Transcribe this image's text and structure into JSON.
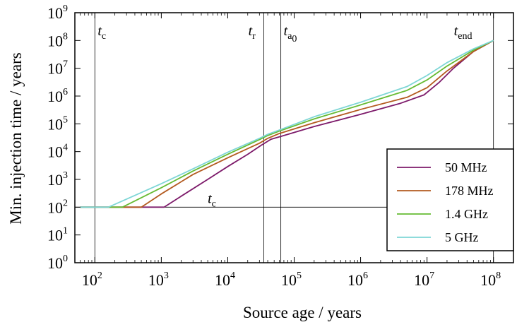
{
  "chart_data": {
    "type": "line",
    "xscale": "log",
    "yscale": "log",
    "xlabel": "Source age / years",
    "ylabel": "Min. injection time / years",
    "xlim": [
      50,
      200000000
    ],
    "ylim": [
      1,
      1000000000
    ],
    "x_ticks": [
      {
        "base": "10",
        "exp": "2",
        "value": 100
      },
      {
        "base": "10",
        "exp": "3",
        "value": 1000
      },
      {
        "base": "10",
        "exp": "4",
        "value": 10000
      },
      {
        "base": "10",
        "exp": "5",
        "value": 100000
      },
      {
        "base": "10",
        "exp": "6",
        "value": 1000000
      },
      {
        "base": "10",
        "exp": "7",
        "value": 10000000
      },
      {
        "base": "10",
        "exp": "8",
        "value": 100000000
      }
    ],
    "y_ticks": [
      {
        "base": "10",
        "exp": "0",
        "value": 1
      },
      {
        "base": "10",
        "exp": "1",
        "value": 10
      },
      {
        "base": "10",
        "exp": "2",
        "value": 100
      },
      {
        "base": "10",
        "exp": "3",
        "value": 1000
      },
      {
        "base": "10",
        "exp": "4",
        "value": 10000
      },
      {
        "base": "10",
        "exp": "5",
        "value": 100000
      },
      {
        "base": "10",
        "exp": "6",
        "value": 1000000
      },
      {
        "base": "10",
        "exp": "7",
        "value": 10000000
      },
      {
        "base": "10",
        "exp": "8",
        "value": 100000000
      },
      {
        "base": "10",
        "exp": "9",
        "value": 1000000000
      }
    ],
    "reference_lines": [
      {
        "orientation": "vertical",
        "x": 100,
        "label_main": "t",
        "label_sub": "c"
      },
      {
        "orientation": "vertical",
        "x": 35000,
        "label_main": "t",
        "label_sub": "r"
      },
      {
        "orientation": "vertical",
        "x": 63000,
        "label_main": "t",
        "label_sub": "a",
        "label_subsub": "0"
      },
      {
        "orientation": "vertical",
        "x": 100000000,
        "label_main": "t",
        "label_sub": "end"
      },
      {
        "orientation": "horizontal",
        "y": 100,
        "label_main": "t",
        "label_sub": "c"
      }
    ],
    "series": [
      {
        "name": "50 MHz",
        "color": "#7d1a6a",
        "points": [
          [
            60,
            100
          ],
          [
            1100,
            100
          ],
          [
            2000,
            250
          ],
          [
            5000,
            1000
          ],
          [
            10000,
            2900
          ],
          [
            20000,
            8000
          ],
          [
            32000,
            17000
          ],
          [
            45000,
            28000
          ],
          [
            70000,
            38000
          ],
          [
            200000,
            80000
          ],
          [
            1000000,
            220000
          ],
          [
            4000000,
            550000
          ],
          [
            9000000,
            1100000
          ],
          [
            15000000,
            3000000
          ],
          [
            25000000,
            10000000
          ],
          [
            50000000,
            40000000
          ],
          [
            100000000,
            100000000
          ]
        ]
      },
      {
        "name": "178 MHz",
        "color": "#b35a1f",
        "points": [
          [
            60,
            100
          ],
          [
            500,
            100
          ],
          [
            1000,
            300
          ],
          [
            3000,
            1500
          ],
          [
            10000,
            6000
          ],
          [
            30000,
            20000
          ],
          [
            40000,
            30000
          ],
          [
            60000,
            45000
          ],
          [
            200000,
            110000
          ],
          [
            1000000,
            330000
          ],
          [
            5000000,
            900000
          ],
          [
            10000000,
            2000000
          ],
          [
            20000000,
            8000000
          ],
          [
            50000000,
            40000000
          ],
          [
            100000000,
            100000000
          ]
        ]
      },
      {
        "name": "1.4 GHz",
        "color": "#66bb33",
        "points": [
          [
            60,
            100
          ],
          [
            260,
            100
          ],
          [
            1000,
            500
          ],
          [
            3000,
            2000
          ],
          [
            10000,
            8000
          ],
          [
            30000,
            27000
          ],
          [
            40000,
            38000
          ],
          [
            60000,
            55000
          ],
          [
            200000,
            150000
          ],
          [
            1000000,
            480000
          ],
          [
            5000000,
            1600000
          ],
          [
            10000000,
            3800000
          ],
          [
            20000000,
            12000000
          ],
          [
            50000000,
            45000000
          ],
          [
            100000000,
            100000000
          ]
        ]
      },
      {
        "name": "5 GHz",
        "color": "#7ed6d6",
        "points": [
          [
            60,
            100
          ],
          [
            160,
            100
          ],
          [
            1000,
            700
          ],
          [
            3000,
            2400
          ],
          [
            10000,
            9500
          ],
          [
            30000,
            30000
          ],
          [
            40000,
            42000
          ],
          [
            60000,
            60000
          ],
          [
            200000,
            180000
          ],
          [
            1000000,
            600000
          ],
          [
            5000000,
            2200000
          ],
          [
            10000000,
            5500000
          ],
          [
            20000000,
            16000000
          ],
          [
            50000000,
            50000000
          ],
          [
            100000000,
            100000000
          ]
        ]
      }
    ],
    "legend": {
      "position": "bottom-right"
    }
  }
}
